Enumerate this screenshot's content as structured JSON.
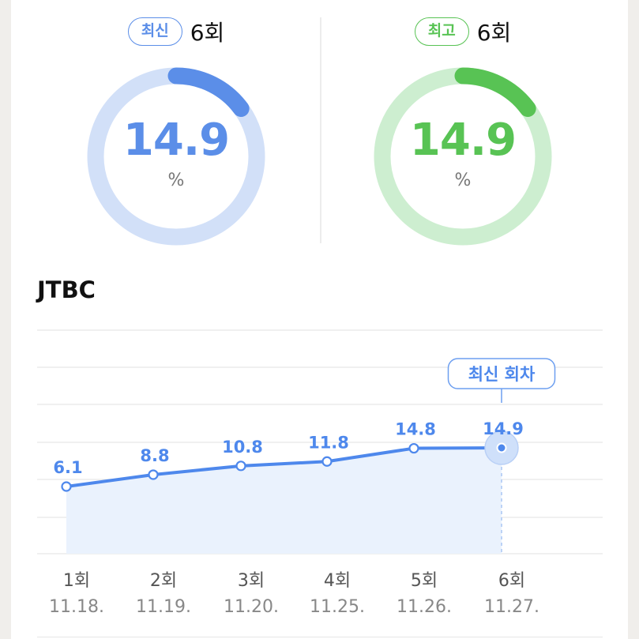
{
  "stats": [
    {
      "badge": "최신",
      "count": "6회",
      "value": "14.9",
      "unit": "%",
      "fraction": 0.149,
      "color": "#5b8ee8",
      "track": "#d2e0f8"
    },
    {
      "badge": "최고",
      "count": "6회",
      "value": "14.9",
      "unit": "%",
      "fraction": 0.149,
      "color": "#58c354",
      "track": "#cdeed0"
    }
  ],
  "section_title": "JTBC",
  "chart_data": {
    "type": "line",
    "categories": [
      "1회",
      "2회",
      "3회",
      "4회",
      "5회",
      "6회"
    ],
    "dates": [
      "11.18.",
      "11.19.",
      "11.20.",
      "11.25.",
      "11.26.",
      "11.27."
    ],
    "values": [
      6.1,
      8.8,
      10.8,
      11.8,
      14.8,
      14.9
    ],
    "value_labels": [
      "6.1",
      "8.8",
      "10.8",
      "11.8",
      "14.8",
      "14.9"
    ],
    "highlight_index": 5,
    "highlight_label": "최신 회차",
    "color": "#4e88ec",
    "fill": "#eaf2fd",
    "grid": true
  }
}
